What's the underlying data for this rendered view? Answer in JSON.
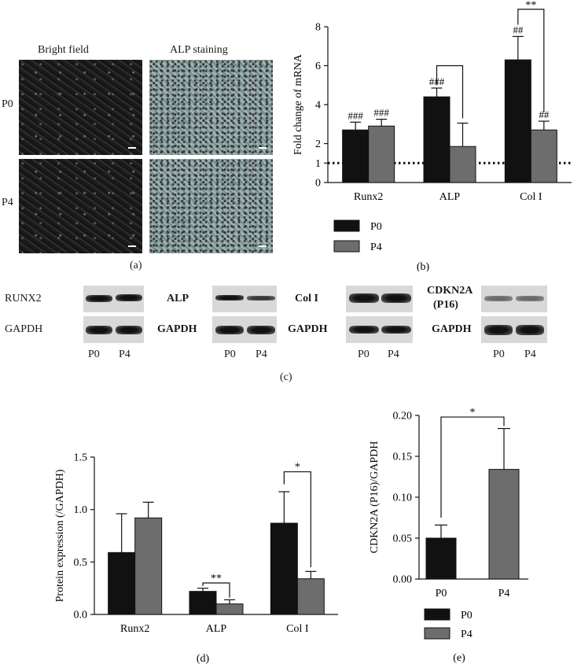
{
  "panel_a": {
    "col_labels": [
      "Bright field",
      "ALP staining"
    ],
    "row_labels": [
      "P0",
      "P4"
    ],
    "caption": "(a)"
  },
  "panel_c": {
    "caption": "(c)",
    "proteins": [
      "RUNX2",
      "ALP",
      "Col I",
      "CDKN2A\n(P16)"
    ],
    "protein_lines": [
      "CDKN2A",
      "(P16)"
    ],
    "loading_label": "GAPDH",
    "lane_labels": [
      "P0",
      "P4"
    ]
  },
  "colors": {
    "p0": "#111111",
    "p4": "#6d6d6d",
    "dotted": "#111111"
  },
  "chart_data": [
    {
      "id": "b",
      "type": "bar",
      "caption": "(b)",
      "ylabel": "Fold change of mRNA",
      "categories": [
        "Runx2",
        "ALP",
        "Col I"
      ],
      "ylim": [
        0,
        8
      ],
      "yticks": [
        0,
        1,
        2,
        4,
        6,
        8
      ],
      "reference_line": 1,
      "series": [
        {
          "name": "P0",
          "values": [
            2.7,
            4.4,
            6.3
          ],
          "errors": [
            0.4,
            0.45,
            1.2
          ],
          "labels": [
            "###",
            "###",
            "##"
          ]
        },
        {
          "name": "P4",
          "values": [
            2.9,
            1.85,
            2.7
          ],
          "errors": [
            0.35,
            1.2,
            0.45
          ],
          "labels": [
            "###",
            "",
            "##"
          ]
        }
      ],
      "significance": [
        {
          "category": "ALP",
          "label": ""
        },
        {
          "category": "Col I",
          "label": "**"
        }
      ],
      "legend": [
        "P0",
        "P4"
      ]
    },
    {
      "id": "d",
      "type": "bar",
      "caption": "(d)",
      "ylabel": "Protein expression (/GAPDH)",
      "categories": [
        "Runx2",
        "ALP",
        "Col I"
      ],
      "ylim": [
        0,
        1.5
      ],
      "yticks": [
        "0.0",
        "0.5",
        "1.0",
        "1.5"
      ],
      "series": [
        {
          "name": "P0",
          "values": [
            0.59,
            0.22,
            0.87
          ],
          "errors": [
            0.37,
            0.03,
            0.3
          ]
        },
        {
          "name": "P4",
          "values": [
            0.92,
            0.1,
            0.34
          ],
          "errors": [
            0.15,
            0.04,
            0.07
          ]
        }
      ],
      "significance": [
        {
          "category": "ALP",
          "label": "**"
        },
        {
          "category": "Col I",
          "label": "*"
        }
      ]
    },
    {
      "id": "e",
      "type": "bar",
      "caption": "(e)",
      "ylabel": "CDKN2A (P16)/GAPDH",
      "categories": [
        "P0",
        "P4"
      ],
      "ylim": [
        0,
        0.2
      ],
      "yticks": [
        "0.00",
        "0.05",
        "0.10",
        "0.15",
        "0.20"
      ],
      "values": [
        0.05,
        0.134
      ],
      "errors": [
        0.016,
        0.05
      ],
      "significance": [
        {
          "label": "*"
        }
      ],
      "legend": [
        "P0",
        "P4"
      ]
    }
  ]
}
